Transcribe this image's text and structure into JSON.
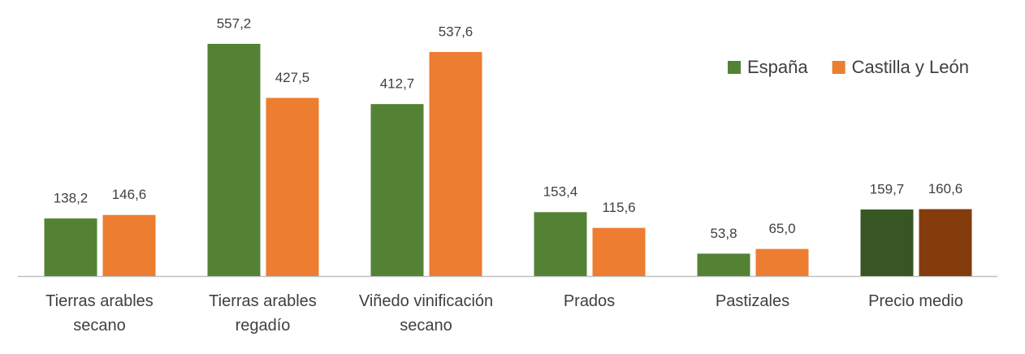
{
  "chart_data": {
    "type": "bar",
    "categories": [
      "Tierras arables secano",
      "Tierras arables regadío",
      "Viñedo vinificación secano",
      "Prados",
      "Pastizales",
      "Precio medio"
    ],
    "series": [
      {
        "name": "España",
        "color": "#548235",
        "colors": [
          "#548235",
          "#548235",
          "#548235",
          "#548235",
          "#548235",
          "#375623"
        ],
        "values": [
          138.2,
          557.2,
          412.7,
          153.4,
          53.8,
          159.7
        ],
        "value_labels": [
          "138,2",
          "557,2",
          "412,7",
          "153,4",
          "53,8",
          "159,7"
        ]
      },
      {
        "name": "Castilla y León",
        "color": "#ed7d31",
        "colors": [
          "#ed7d31",
          "#ed7d31",
          "#ed7d31",
          "#ed7d31",
          "#ed7d31",
          "#843c0c"
        ],
        "values": [
          146.6,
          427.5,
          537.6,
          115.6,
          65.0,
          160.6
        ],
        "value_labels": [
          "146,6",
          "427,5",
          "537,6",
          "115,6",
          "65,0",
          "160,6"
        ]
      }
    ],
    "legend": "top-right"
  }
}
